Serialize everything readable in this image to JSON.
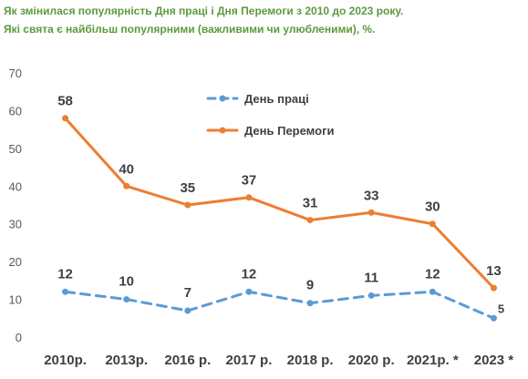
{
  "header": {
    "title_line1": "Як змінилася популярність Дня праці і Дня Перемоги з 2010 до 2023 року.",
    "title_line2": "Які свята є найбільш популярними (важливими чи улюбленими), %."
  },
  "chart_data": {
    "type": "line",
    "categories": [
      "2010р.",
      "2013р.",
      "2016 р.",
      "2017 р.",
      "2018 р.",
      "2020 р.",
      "2021р. *",
      "2023 *"
    ],
    "series": [
      {
        "name": "День праці",
        "values": [
          12,
          10,
          7,
          12,
          9,
          11,
          12,
          5
        ],
        "color": "#5b9bd5",
        "style": "dashed"
      },
      {
        "name": "День Перемоги",
        "values": [
          58,
          40,
          35,
          37,
          31,
          33,
          30,
          13
        ],
        "color": "#ed7d31",
        "style": "solid"
      }
    ],
    "ylim": [
      0,
      70
    ],
    "yticks": [
      0,
      10,
      20,
      30,
      40,
      50,
      60,
      70
    ],
    "grid": false,
    "legend_position": "top-center",
    "data_labels": true
  }
}
